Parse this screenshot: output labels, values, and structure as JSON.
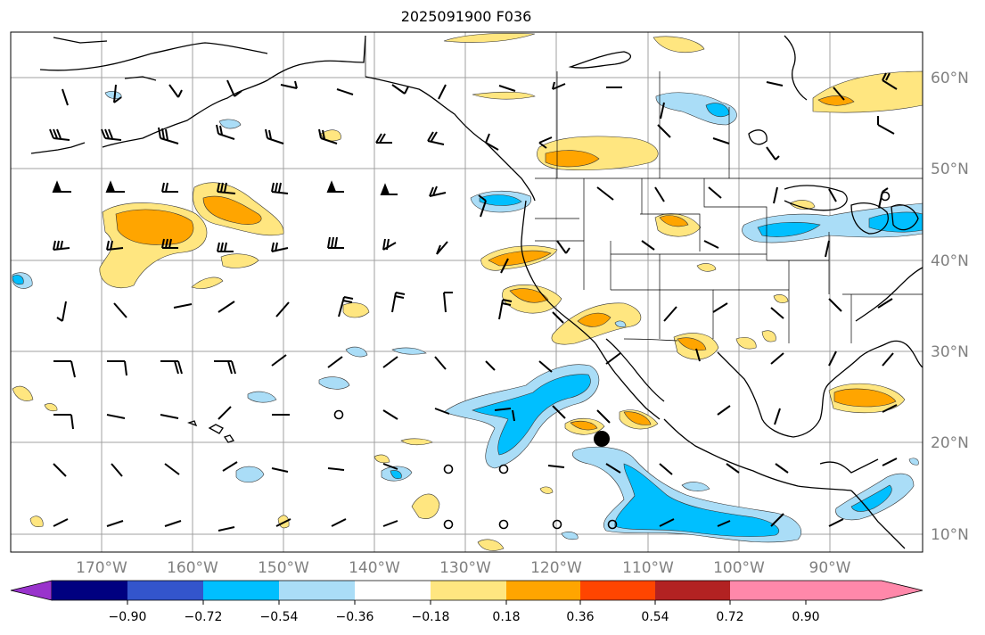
{
  "title": "2025091900 F036",
  "lat_labels": [
    "60°N",
    "50°N",
    "40°N",
    "30°N",
    "20°N",
    "10°N"
  ],
  "lon_labels": [
    "170°W",
    "160°W",
    "150°W",
    "140°W",
    "130°W",
    "120°W",
    "110°W",
    "100°W",
    "90°W"
  ],
  "colorbar": {
    "ticks": [
      "−0.90",
      "−0.72",
      "−0.54",
      "−0.36",
      "−0.18",
      "0.18",
      "0.36",
      "0.54",
      "0.72",
      "0.90"
    ],
    "colors": [
      "#9933cc",
      "#000080",
      "#3355cc",
      "#00bfff",
      "#aaddf7",
      "#ffffff",
      "#ffe680",
      "#ffa500",
      "#ff4500",
      "#b22222",
      "#ff88aa"
    ]
  },
  "markers": {
    "storm_center": "filled-circle",
    "station_symbol": "open-circle"
  }
}
